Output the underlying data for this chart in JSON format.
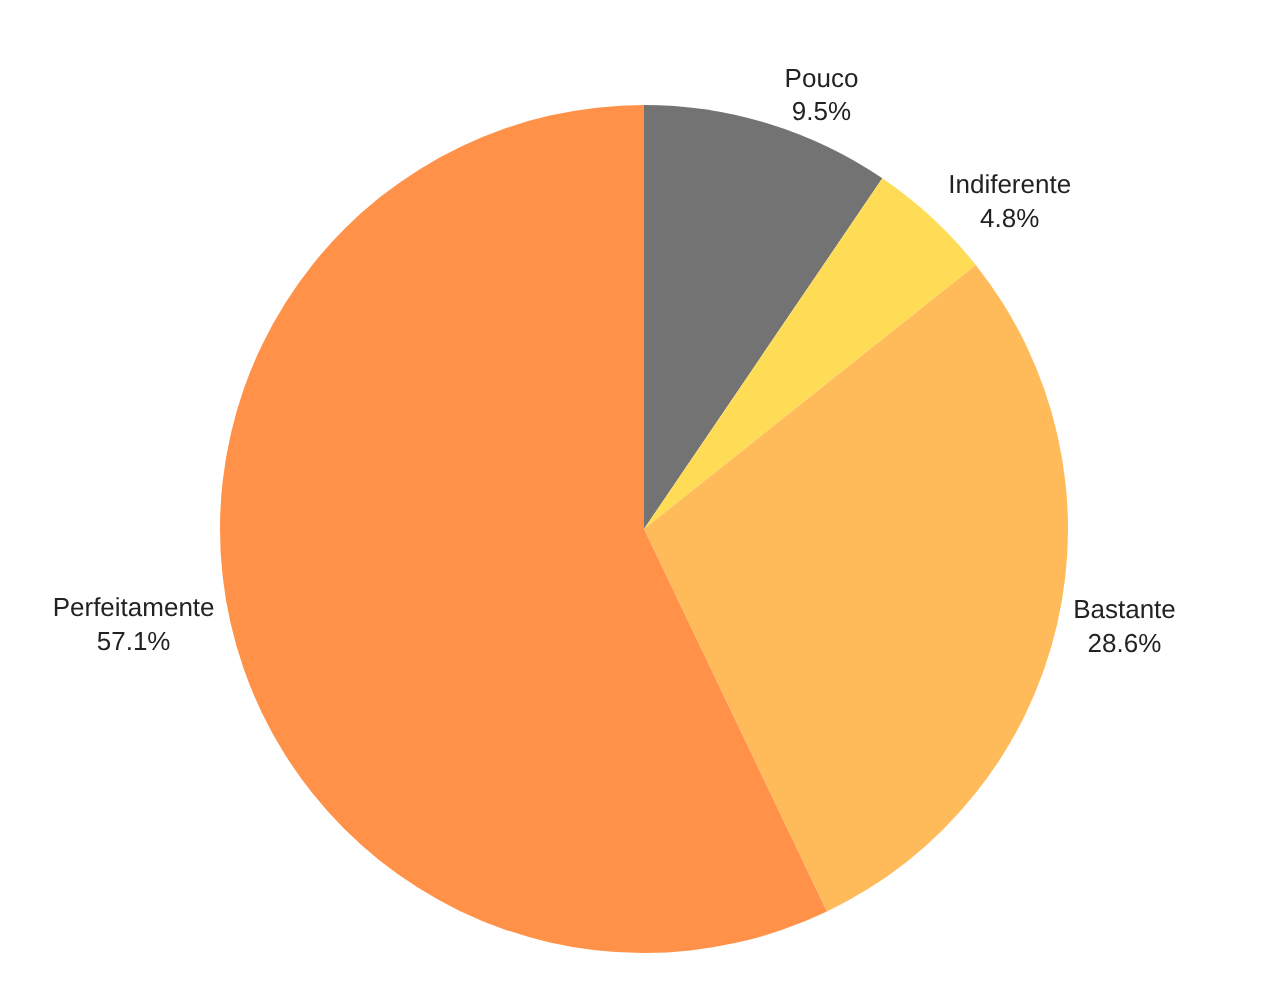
{
  "chart_data": {
    "type": "pie",
    "categories": [
      "Pouco",
      "Indiferente",
      "Bastante",
      "Perfeitamente"
    ],
    "values": [
      9.5,
      4.8,
      28.6,
      57.1
    ],
    "value_labels": [
      "9.5%",
      "4.8%",
      "28.6%",
      "57.1%"
    ],
    "colors": [
      "#737373",
      "#ffdc56",
      "#ffbb5a",
      "#ff9248"
    ],
    "legend": false
  }
}
